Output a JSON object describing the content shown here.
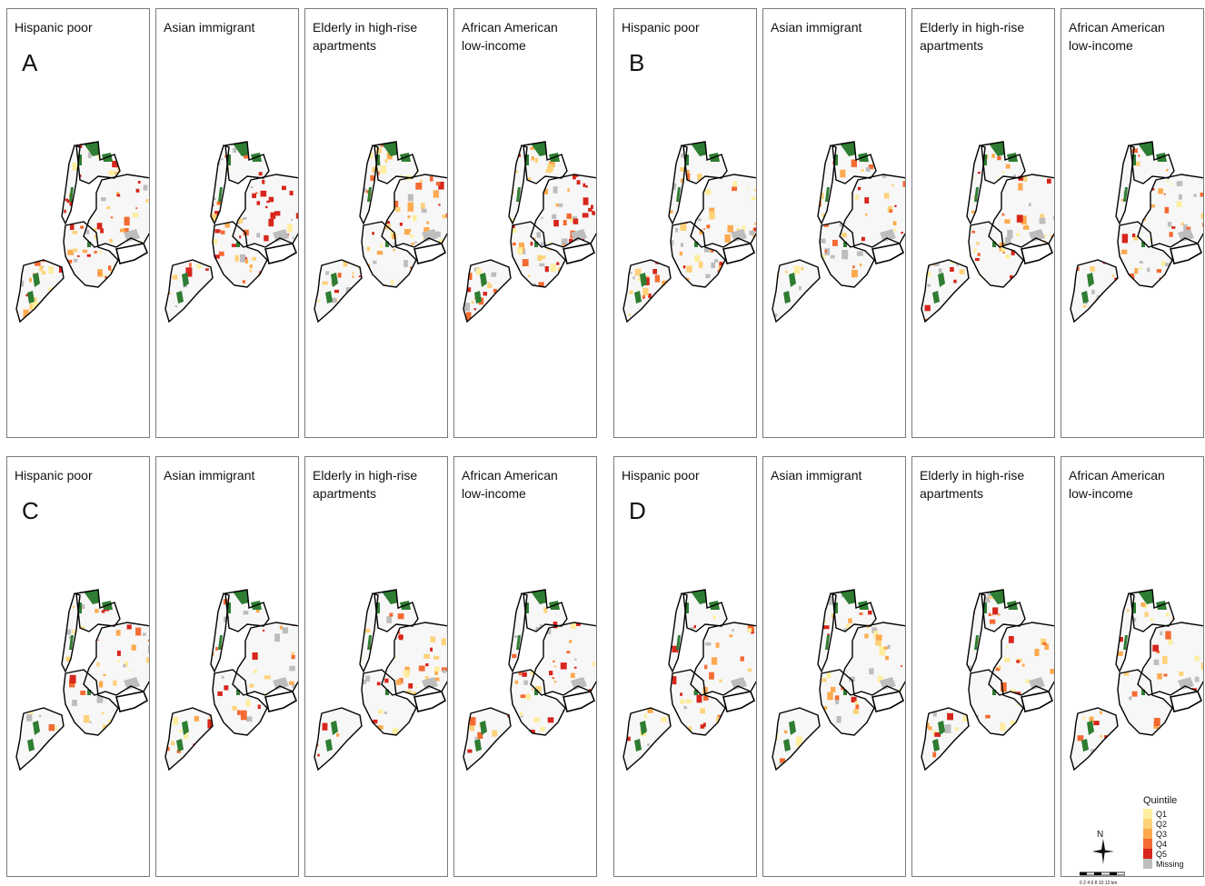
{
  "groups": [
    {
      "letter": "A",
      "panels": [
        {
          "title": "Hispanic poor"
        },
        {
          "title": "Asian immigrant"
        },
        {
          "title": "Elderly in high-rise apartments"
        },
        {
          "title": "African American low-income"
        }
      ]
    },
    {
      "letter": "B",
      "panels": [
        {
          "title": "Hispanic poor"
        },
        {
          "title": "Asian immigrant"
        },
        {
          "title": "Elderly in high-rise apartments"
        },
        {
          "title": "African American low-income"
        }
      ]
    },
    {
      "letter": "C",
      "panels": [
        {
          "title": "Hispanic poor"
        },
        {
          "title": "Asian immigrant"
        },
        {
          "title": "Elderly in high-rise apartments"
        },
        {
          "title": "African American low-income"
        }
      ]
    },
    {
      "letter": "D",
      "panels": [
        {
          "title": "Hispanic poor"
        },
        {
          "title": "Asian immigrant"
        },
        {
          "title": "Elderly in high-rise apartments"
        },
        {
          "title": "African American low-income"
        }
      ]
    }
  ],
  "legend": {
    "title": "Quintile",
    "items": [
      {
        "label": "Q1",
        "color": "#fdeea0"
      },
      {
        "label": "Q2",
        "color": "#fdd27a"
      },
      {
        "label": "Q3",
        "color": "#fcaa4f"
      },
      {
        "label": "Q4",
        "color": "#f36b32"
      },
      {
        "label": "Q5",
        "color": "#d7261c"
      },
      {
        "label": "Missing",
        "color": "#bdbdbd"
      }
    ]
  },
  "north_arrow": {
    "label": "N"
  },
  "scale_bar": {
    "label": "0 2 4 6 8 10 12 km"
  },
  "map_colors": {
    "park": "#2e7d32",
    "land": "#f7f7f7",
    "outline": "#000000"
  }
}
